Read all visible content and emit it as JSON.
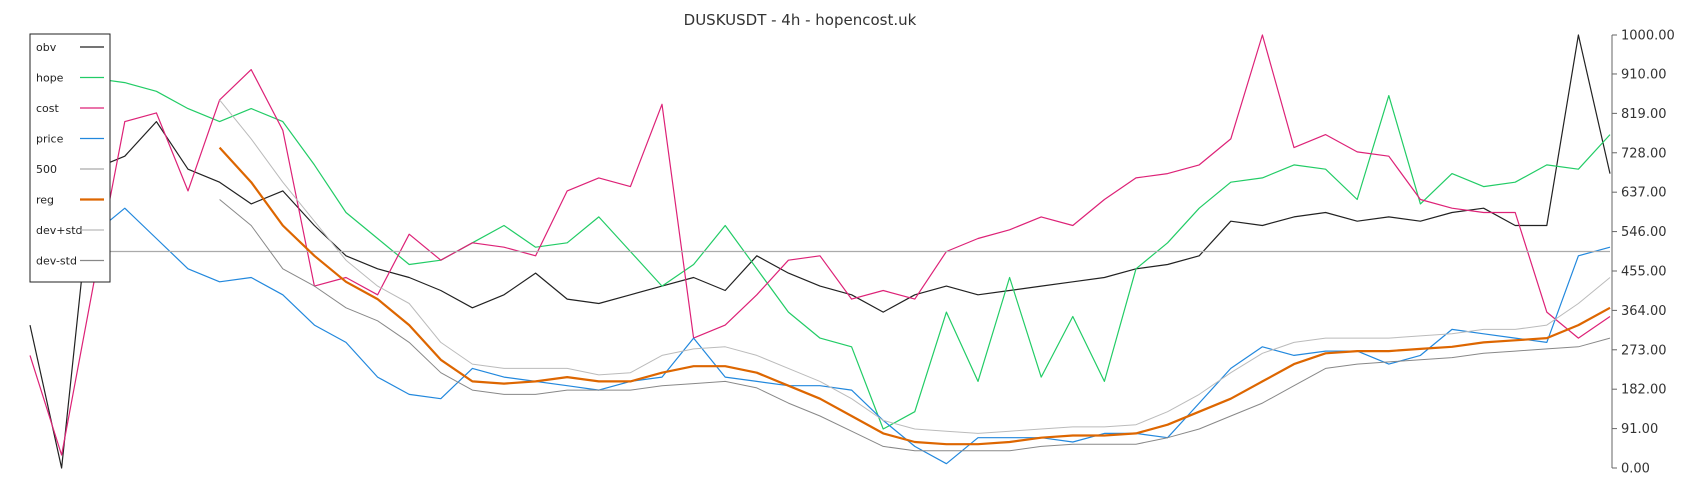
{
  "chart_data": {
    "type": "line",
    "title": "DUSKUSDT - 4h - hopencost.uk",
    "xlabel": "",
    "ylabel": "",
    "ylim": [
      0,
      1000
    ],
    "yticks": [
      "0.00",
      "91.00",
      "182.00",
      "273.00",
      "364.00",
      "455.00",
      "546.00",
      "637.00",
      "728.00",
      "819.00",
      "910.00",
      "1000.00"
    ],
    "ytick_values": [
      0,
      91,
      182,
      273,
      364,
      455,
      546,
      637,
      728,
      819,
      910,
      1000
    ],
    "yaxis_side": "right",
    "grid": false,
    "legend_position": "top-left",
    "reference_line": {
      "value": 500,
      "color": "#bbbbbb"
    },
    "series": [
      {
        "name": "obv",
        "color": "#222222",
        "width": 1.2,
        "x": [
          0,
          2,
          4,
          6,
          8,
          10,
          12,
          14,
          16,
          18,
          20,
          22,
          24,
          26,
          28,
          30,
          32,
          34,
          36,
          38,
          40,
          42,
          44,
          46,
          48,
          50,
          52,
          54,
          56,
          58,
          60,
          62,
          64,
          66,
          68,
          70,
          72,
          74,
          76,
          78,
          80,
          82,
          84,
          86,
          88,
          90,
          92,
          94,
          96,
          98,
          100
        ],
        "y": [
          330,
          0,
          690,
          720,
          800,
          690,
          660,
          610,
          640,
          560,
          490,
          460,
          440,
          410,
          370,
          400,
          450,
          390,
          380,
          400,
          420,
          440,
          410,
          490,
          450,
          420,
          400,
          360,
          400,
          420,
          400,
          410,
          420,
          430,
          440,
          460,
          470,
          490,
          570,
          560,
          580,
          590,
          570,
          580,
          570,
          590,
          600,
          560,
          560,
          1000,
          680
        ]
      },
      {
        "name": "hope",
        "color": "#22cc66",
        "width": 1.2,
        "x": [
          0,
          2,
          4,
          6,
          8,
          10,
          12,
          14,
          16,
          18,
          20,
          22,
          24,
          26,
          28,
          30,
          32,
          34,
          36,
          38,
          40,
          42,
          44,
          46,
          48,
          50,
          52,
          54,
          56,
          58,
          60,
          62,
          64,
          66,
          68,
          70,
          72,
          74,
          76,
          78,
          80,
          82,
          84,
          86,
          88,
          90,
          92,
          94,
          96,
          98,
          100
        ],
        "y": [
          940,
          925,
          900,
          890,
          870,
          830,
          800,
          830,
          800,
          700,
          590,
          530,
          470,
          480,
          520,
          560,
          510,
          520,
          580,
          500,
          420,
          470,
          560,
          460,
          360,
          300,
          280,
          90,
          130,
          360,
          200,
          440,
          210,
          350,
          200,
          460,
          520,
          600,
          660,
          670,
          700,
          690,
          620,
          860,
          610,
          680,
          650,
          660,
          700,
          690,
          770
        ]
      },
      {
        "name": "cost",
        "color": "#dd2277",
        "width": 1.2,
        "x": [
          0,
          2,
          4,
          6,
          8,
          10,
          12,
          14,
          16,
          18,
          20,
          22,
          24,
          26,
          28,
          30,
          32,
          34,
          36,
          38,
          40,
          42,
          44,
          46,
          48,
          50,
          52,
          54,
          56,
          58,
          60,
          62,
          64,
          66,
          68,
          70,
          72,
          74,
          76,
          78,
          80,
          82,
          84,
          86,
          88,
          90,
          92,
          94,
          96,
          98,
          100
        ],
        "y": [
          260,
          30,
          420,
          800,
          820,
          640,
          850,
          920,
          780,
          420,
          440,
          400,
          540,
          480,
          520,
          510,
          490,
          640,
          670,
          650,
          840,
          300,
          330,
          400,
          480,
          490,
          390,
          410,
          390,
          500,
          530,
          550,
          580,
          560,
          620,
          670,
          680,
          700,
          760,
          1000,
          740,
          770,
          730,
          720,
          620,
          600,
          590,
          590,
          360,
          300,
          350
        ]
      },
      {
        "name": "price",
        "color": "#2288dd",
        "width": 1.2,
        "x": [
          0,
          2,
          4,
          6,
          8,
          10,
          12,
          14,
          16,
          18,
          20,
          22,
          24,
          26,
          28,
          30,
          32,
          34,
          36,
          38,
          40,
          42,
          44,
          46,
          48,
          50,
          52,
          54,
          56,
          58,
          60,
          62,
          64,
          66,
          68,
          70,
          72,
          74,
          76,
          78,
          80,
          82,
          84,
          86,
          88,
          90,
          92,
          94,
          96,
          98,
          100
        ],
        "y": [
          680,
          600,
          540,
          600,
          530,
          460,
          430,
          440,
          400,
          330,
          290,
          210,
          170,
          160,
          230,
          210,
          200,
          190,
          180,
          200,
          210,
          300,
          210,
          200,
          190,
          190,
          180,
          110,
          50,
          10,
          70,
          70,
          70,
          60,
          80,
          80,
          70,
          150,
          230,
          280,
          260,
          270,
          270,
          240,
          260,
          320,
          310,
          300,
          290,
          490,
          510
        ]
      },
      {
        "name": "500",
        "color": "#aaaaaa",
        "width": 1.2,
        "x": [
          0,
          100
        ],
        "y": [
          500,
          500
        ]
      },
      {
        "name": "reg",
        "color": "#dd6600",
        "width": 2.2,
        "x": [
          0,
          2,
          4,
          6,
          8,
          10,
          12,
          14,
          16,
          18,
          20,
          22,
          24,
          26,
          28,
          30,
          32,
          34,
          36,
          38,
          40,
          42,
          44,
          46,
          48,
          50,
          52,
          54,
          56,
          58,
          60,
          62,
          64,
          66,
          68,
          70,
          72,
          74,
          76,
          78,
          80,
          82,
          84,
          86,
          88,
          90,
          92,
          94,
          96,
          98,
          100
        ],
        "y": [
          null,
          null,
          null,
          null,
          null,
          null,
          740,
          660,
          560,
          490,
          430,
          390,
          330,
          250,
          200,
          195,
          200,
          210,
          200,
          200,
          220,
          235,
          235,
          220,
          190,
          160,
          120,
          80,
          60,
          55,
          55,
          60,
          70,
          75,
          75,
          80,
          100,
          130,
          160,
          200,
          240,
          265,
          270,
          270,
          275,
          280,
          290,
          295,
          300,
          330,
          370
        ]
      },
      {
        "name": "dev+std",
        "color": "#bbbbbb",
        "width": 1,
        "x": [
          0,
          2,
          4,
          6,
          8,
          10,
          12,
          14,
          16,
          18,
          20,
          22,
          24,
          26,
          28,
          30,
          32,
          34,
          36,
          38,
          40,
          42,
          44,
          46,
          48,
          50,
          52,
          54,
          56,
          58,
          60,
          62,
          64,
          66,
          68,
          70,
          72,
          74,
          76,
          78,
          80,
          82,
          84,
          86,
          88,
          90,
          92,
          94,
          96,
          98,
          100
        ],
        "y": [
          null,
          null,
          null,
          null,
          null,
          null,
          850,
          760,
          660,
          570,
          480,
          420,
          380,
          290,
          240,
          230,
          230,
          230,
          215,
          220,
          260,
          275,
          280,
          260,
          230,
          200,
          160,
          110,
          90,
          85,
          80,
          85,
          90,
          95,
          95,
          100,
          130,
          170,
          220,
          265,
          290,
          300,
          300,
          300,
          305,
          310,
          320,
          320,
          330,
          380,
          440
        ]
      },
      {
        "name": "dev-std",
        "color": "#888888",
        "width": 1,
        "x": [
          0,
          2,
          4,
          6,
          8,
          10,
          12,
          14,
          16,
          18,
          20,
          22,
          24,
          26,
          28,
          30,
          32,
          34,
          36,
          38,
          40,
          42,
          44,
          46,
          48,
          50,
          52,
          54,
          56,
          58,
          60,
          62,
          64,
          66,
          68,
          70,
          72,
          74,
          76,
          78,
          80,
          82,
          84,
          86,
          88,
          90,
          92,
          94,
          96,
          98,
          100
        ],
        "y": [
          null,
          null,
          null,
          null,
          null,
          null,
          620,
          560,
          460,
          420,
          370,
          340,
          290,
          220,
          180,
          170,
          170,
          180,
          180,
          180,
          190,
          195,
          200,
          185,
          150,
          120,
          85,
          50,
          40,
          40,
          40,
          40,
          50,
          55,
          55,
          55,
          70,
          90,
          120,
          150,
          190,
          230,
          240,
          245,
          250,
          255,
          265,
          270,
          275,
          280,
          300
        ]
      }
    ]
  }
}
